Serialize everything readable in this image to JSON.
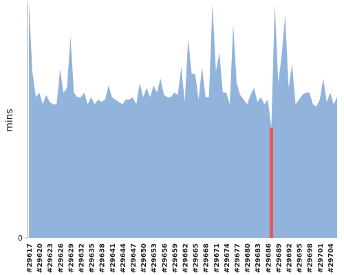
{
  "chart_data": {
    "type": "area",
    "y_label": "mins",
    "categories": [
      "#29617",
      null,
      null,
      "#29620",
      null,
      null,
      "#29623",
      null,
      null,
      "#29626",
      null,
      null,
      "#29629",
      null,
      null,
      "#29632",
      null,
      null,
      "#29635",
      null,
      null,
      "#29638",
      null,
      null,
      "#29641",
      null,
      null,
      "#29644",
      null,
      null,
      "#29647",
      null,
      null,
      "#29650",
      null,
      null,
      "#29653",
      null,
      null,
      "#29656",
      null,
      null,
      "#29659",
      null,
      null,
      "#29662",
      null,
      null,
      "#29665",
      null,
      null,
      "#29668",
      null,
      null,
      "#29671",
      null,
      null,
      "#29674",
      null,
      null,
      "#29677",
      null,
      null,
      "#29680",
      null,
      null,
      "#29683",
      null,
      null,
      "#29686",
      null,
      null,
      "#29689",
      null,
      null,
      "#29692",
      null,
      null,
      "#29695",
      null,
      null,
      "#29698",
      null,
      null,
      "#29701",
      null,
      null,
      "#29704",
      null,
      null
    ],
    "series": [
      {
        "color": "#92b4dc",
        "values": [
          100,
          71,
          60,
          62,
          57,
          61,
          58,
          57,
          57,
          72,
          62,
          64,
          86,
          62,
          60,
          60,
          62,
          57,
          60,
          57,
          59,
          58,
          59,
          65,
          60,
          59,
          58,
          57,
          59,
          59,
          60,
          57,
          66,
          60,
          64,
          60,
          65,
          62,
          68,
          61,
          60,
          60,
          62,
          61,
          73,
          58,
          85,
          70,
          70,
          59,
          73,
          60,
          60,
          100,
          71,
          79,
          62,
          62,
          57,
          91,
          66,
          61,
          59,
          57,
          61,
          64,
          58,
          60,
          57,
          59,
          47,
          100,
          66,
          78,
          95,
          64,
          74,
          57,
          59,
          61,
          62,
          62,
          57,
          56,
          59,
          68,
          58,
          62,
          57,
          60
        ]
      }
    ],
    "highlight": {
      "index": 70,
      "color": "#e8595a"
    },
    "ylim": [
      0,
      100
    ],
    "yticks": [
      0
    ]
  }
}
